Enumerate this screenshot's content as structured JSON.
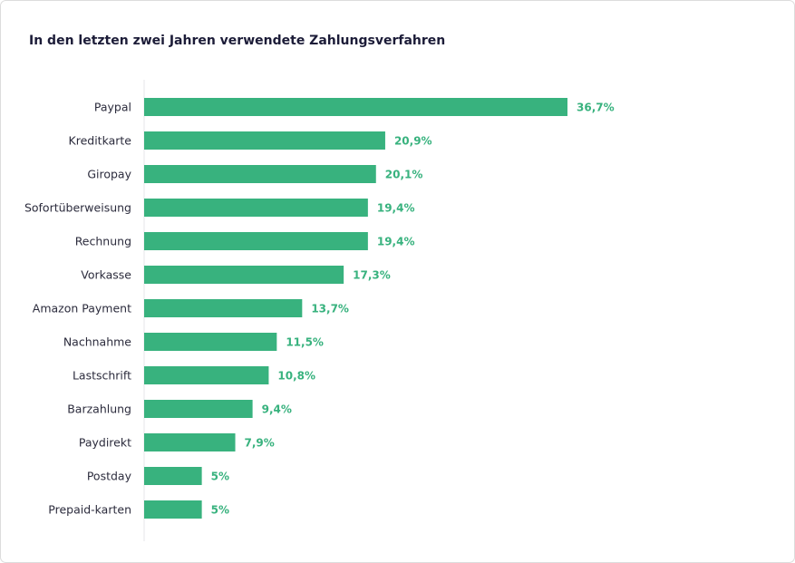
{
  "chart_data": {
    "type": "bar",
    "orientation": "horizontal",
    "title": "In den letzten zwei Jahren verwendete Zahlungsverfahren",
    "categories": [
      "Paypal",
      "Kreditkarte",
      "Giropay",
      "Sofortüberweisung",
      "Rechnung",
      "Vorkasse",
      "Amazon Payment",
      "Nachnahme",
      "Lastschrift",
      "Barzahlung",
      "Paydirekt",
      "Postday",
      "Prepaid-karten"
    ],
    "values": [
      36.7,
      20.9,
      20.1,
      19.4,
      19.4,
      17.3,
      13.7,
      11.5,
      10.8,
      9.4,
      7.9,
      5,
      5
    ],
    "value_labels": [
      "36,7%",
      "20,9%",
      "20,1%",
      "19,4%",
      "19,4%",
      "17,3%",
      "13,7%",
      "11,5%",
      "10,8%",
      "9,4%",
      "7,9%",
      "5%",
      "5%"
    ],
    "color": "#38b27e"
  }
}
